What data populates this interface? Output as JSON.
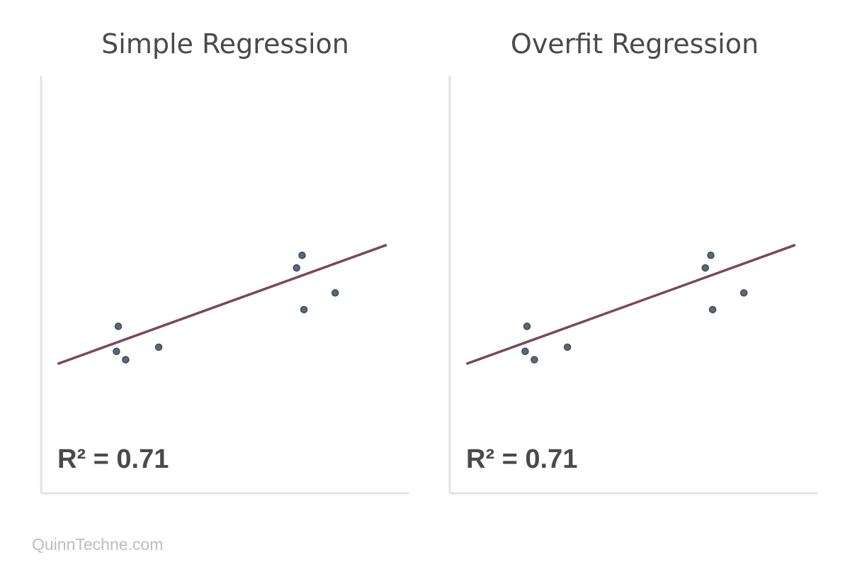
{
  "footer": {
    "text": "QuinnTechne.com"
  },
  "colors": {
    "fit_line": "#7b4759",
    "points": "#5a6976",
    "axis": "#e3e3e3",
    "text": "#4a4a4a",
    "footer": "#bdbdbd"
  },
  "chart_data": [
    {
      "type": "scatter",
      "title": "Simple Regression",
      "annotation": "R² = 0.71",
      "xlim": [
        0,
        10
      ],
      "ylim": [
        0,
        10
      ],
      "grid": false,
      "points": [
        {
          "x": 2.1,
          "y": 4.0
        },
        {
          "x": 2.05,
          "y": 3.4
        },
        {
          "x": 2.3,
          "y": 3.2
        },
        {
          "x": 3.2,
          "y": 3.5
        },
        {
          "x": 7.1,
          "y": 5.7
        },
        {
          "x": 6.95,
          "y": 5.4
        },
        {
          "x": 7.15,
          "y": 4.4
        },
        {
          "x": 8.0,
          "y": 4.8
        }
      ],
      "fit_line": {
        "x": [
          0.45,
          9.4
        ],
        "y": [
          3.1,
          5.95
        ]
      }
    },
    {
      "type": "scatter",
      "title": "Overfit Regression",
      "annotation": "R² = 0.71",
      "xlim": [
        0,
        10
      ],
      "ylim": [
        0,
        10
      ],
      "grid": false,
      "points": [
        {
          "x": 2.1,
          "y": 4.0
        },
        {
          "x": 2.05,
          "y": 3.4
        },
        {
          "x": 2.3,
          "y": 3.2
        },
        {
          "x": 3.2,
          "y": 3.5
        },
        {
          "x": 7.1,
          "y": 5.7
        },
        {
          "x": 6.95,
          "y": 5.4
        },
        {
          "x": 7.15,
          "y": 4.4
        },
        {
          "x": 8.0,
          "y": 4.8
        }
      ],
      "fit_line": {
        "x": [
          0.45,
          9.4
        ],
        "y": [
          3.1,
          5.95
        ]
      }
    }
  ]
}
